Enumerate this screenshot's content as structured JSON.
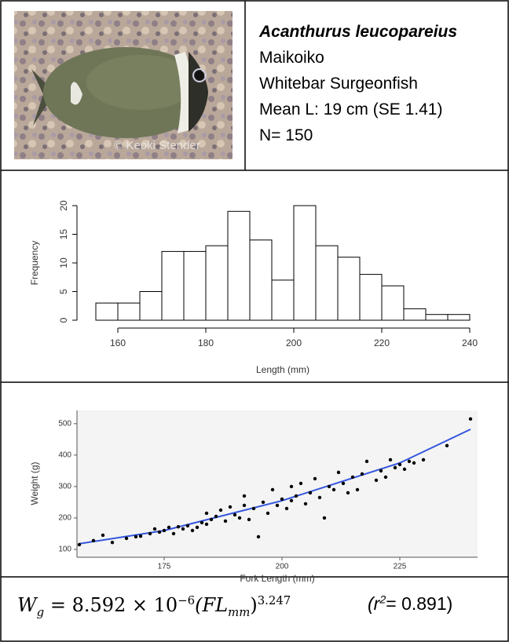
{
  "header": {
    "scientific_name": "Acanthurus leucopareius",
    "hawaiian_name": "Maikoiko",
    "common_name": "Whitebar Surgeonfish",
    "mean_length": "Mean L: 19 cm (SE 1.41)",
    "sample_size": "N= 150",
    "photo_credit": "© Keoki Stender"
  },
  "chart_data": [
    {
      "type": "histogram",
      "xlabel": "Length (mm)",
      "ylabel": "Frequency",
      "color": "#ffffff",
      "bins": [
        155,
        160,
        165,
        170,
        175,
        180,
        185,
        190,
        195,
        200,
        205,
        210,
        215,
        220,
        225,
        230,
        235,
        240
      ],
      "values": [
        3,
        3,
        5,
        12,
        12,
        13,
        19,
        14,
        7,
        20,
        13,
        11,
        8,
        6,
        2,
        1,
        1
      ],
      "xlim": [
        155,
        240
      ],
      "ylim": [
        0,
        20
      ],
      "xticks": [
        160,
        180,
        200,
        220,
        240
      ],
      "yticks": [
        0,
        5,
        10,
        15,
        20
      ]
    },
    {
      "type": "scatter",
      "xlabel": "Fork Length (mm)",
      "ylabel": "Weight (g)",
      "color": "#000000",
      "x": [
        157,
        160,
        162,
        164,
        167,
        169,
        170,
        172,
        173,
        174,
        175,
        176,
        177,
        178,
        179,
        180,
        181,
        182,
        183,
        184,
        184,
        185,
        186,
        187,
        188,
        189,
        190,
        191,
        192,
        192,
        193,
        194,
        195,
        196,
        197,
        198,
        199,
        200,
        201,
        202,
        202,
        203,
        204,
        205,
        206,
        207,
        208,
        209,
        210,
        211,
        212,
        213,
        214,
        215,
        216,
        217,
        218,
        220,
        221,
        222,
        223,
        224,
        225,
        226,
        227,
        228,
        230,
        235,
        240
      ],
      "values": [
        115,
        128,
        145,
        122,
        135,
        140,
        142,
        150,
        165,
        155,
        160,
        170,
        150,
        172,
        165,
        175,
        160,
        170,
        185,
        215,
        180,
        195,
        205,
        225,
        190,
        235,
        210,
        200,
        240,
        270,
        195,
        230,
        140,
        250,
        215,
        290,
        240,
        260,
        230,
        300,
        255,
        270,
        310,
        245,
        280,
        325,
        265,
        200,
        300,
        290,
        345,
        310,
        280,
        330,
        290,
        340,
        380,
        320,
        350,
        330,
        385,
        360,
        370,
        355,
        380,
        375,
        385,
        430,
        515
      ],
      "fit": {
        "color": "#3355dd",
        "x": [
          157,
          175,
          200,
          225,
          240
        ],
        "values": [
          118,
          160,
          255,
          375,
          482
        ]
      },
      "xlim": [
        156.5,
        241.5
      ],
      "ylim": [
        75,
        542
      ],
      "xticks": [
        175,
        200,
        225
      ],
      "yticks": [
        100,
        200,
        300,
        400,
        500
      ]
    }
  ],
  "equation": {
    "lhs": "W",
    "lhs_sub": "g",
    "middle": "= 8.592 × 10",
    "exponent": "−6",
    "variable": "(FL",
    "variable_sub": "mm",
    "close": ")",
    "power": "3.247",
    "r2_open": "(r",
    "r2_sup": "2",
    "r2_value": "= 0.891)"
  }
}
